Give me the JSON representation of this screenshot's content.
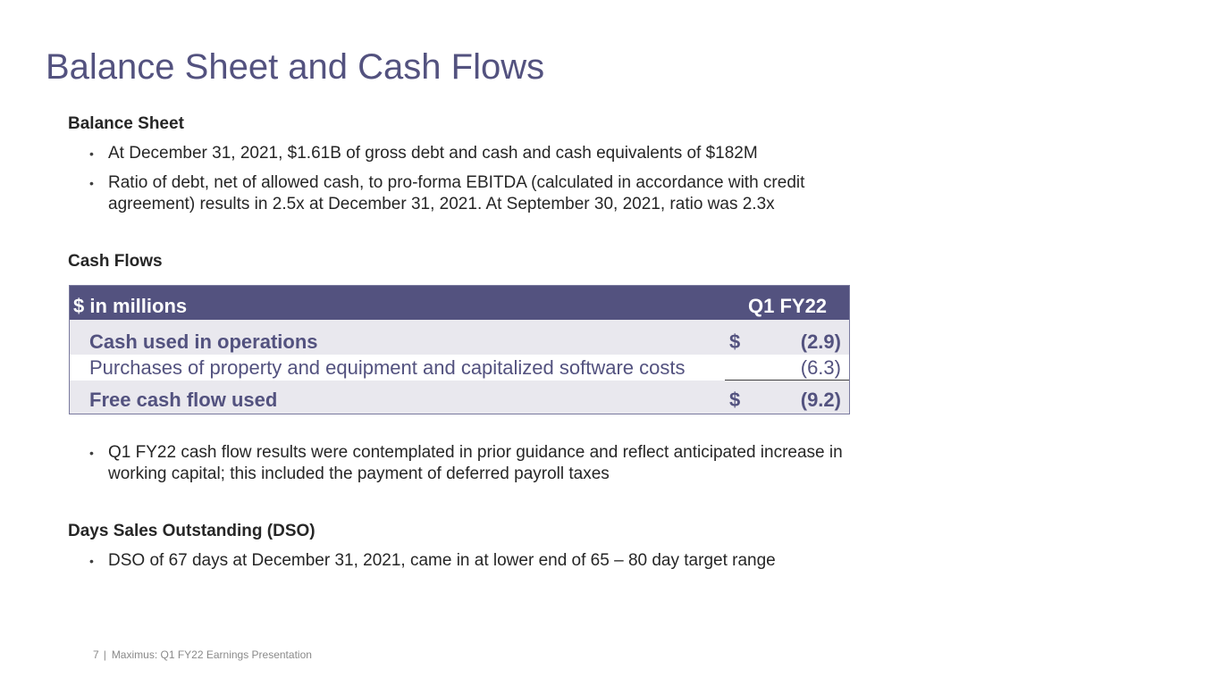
{
  "title": "Balance Sheet and Cash Flows",
  "balance_sheet": {
    "heading": "Balance Sheet",
    "bullets": [
      "At December 31, 2021, $1.61B of gross debt and cash and cash equivalents of $182M",
      "Ratio of debt, net of allowed cash, to pro-forma EBITDA (calculated in accordance with credit\nagreement) results in 2.5x at December 31, 2021. At September 30, 2021, ratio was 2.3x"
    ]
  },
  "cash_flows": {
    "heading": "Cash Flows",
    "table": {
      "header_label": "$ in millions",
      "header_column": "Q1 FY22",
      "rows": [
        {
          "label": "Cash used in operations",
          "currency": "$",
          "value": "(2.9)"
        },
        {
          "label": "Purchases of property and equipment and capitalized software costs",
          "currency": "",
          "value": "(6.3)"
        },
        {
          "label": "Free cash flow used",
          "currency": "$",
          "value": "(9.2)"
        }
      ]
    },
    "bullets": [
      "Q1 FY22 cash flow results were contemplated in prior guidance and reflect anticipated increase in\nworking capital; this included the payment of deferred payroll taxes"
    ]
  },
  "dso": {
    "heading": "Days Sales Outstanding (DSO)",
    "bullets": [
      "DSO of 67 days at December 31, 2021, came in at lower end of 65 – 80 day target range"
    ]
  },
  "footer": {
    "page_number": "7",
    "separator": "|",
    "text": "Maximus: Q1 FY22 Earnings Presentation"
  },
  "colors": {
    "accent": "#53527f",
    "row_shade": "#e9e8ee",
    "body_text": "#262626"
  }
}
